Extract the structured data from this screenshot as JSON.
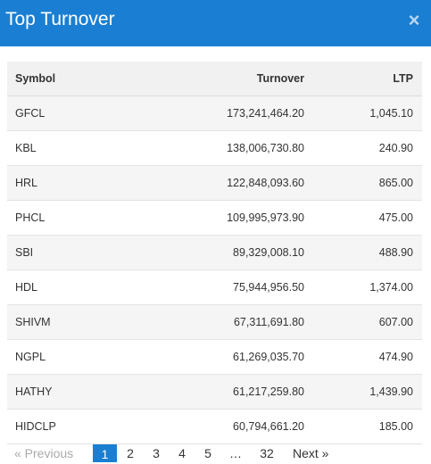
{
  "modal": {
    "title": "Top Turnover",
    "close_glyph": "×"
  },
  "table": {
    "headers": {
      "symbol": "Symbol",
      "turnover": "Turnover",
      "ltp": "LTP"
    },
    "rows": [
      {
        "symbol": "GFCL",
        "turnover": "173,241,464.20",
        "ltp": "1,045.10"
      },
      {
        "symbol": "KBL",
        "turnover": "138,006,730.80",
        "ltp": "240.90"
      },
      {
        "symbol": "HRL",
        "turnover": "122,848,093.60",
        "ltp": "865.00"
      },
      {
        "symbol": "PHCL",
        "turnover": "109,995,973.90",
        "ltp": "475.00"
      },
      {
        "symbol": "SBI",
        "turnover": "89,329,008.10",
        "ltp": "488.90"
      },
      {
        "symbol": "HDL",
        "turnover": "75,944,956.50",
        "ltp": "1,374.00"
      },
      {
        "symbol": "SHIVM",
        "turnover": "67,311,691.80",
        "ltp": "607.00"
      },
      {
        "symbol": "NGPL",
        "turnover": "61,269,035.70",
        "ltp": "474.90"
      },
      {
        "symbol": "HATHY",
        "turnover": "61,217,259.80",
        "ltp": "1,439.90"
      },
      {
        "symbol": "HIDCLP",
        "turnover": "60,794,661.20",
        "ltp": "185.00"
      }
    ]
  },
  "pagination": {
    "previous": "« Previous",
    "pages": [
      "1",
      "2",
      "3",
      "4",
      "5",
      "…",
      "32"
    ],
    "current_page": "1",
    "next": "Next »"
  },
  "colors": {
    "header_bg": "#1a7fd2",
    "active_page_bg": "#1a7fd2",
    "odd_row_bg": "#f5f5f5"
  }
}
